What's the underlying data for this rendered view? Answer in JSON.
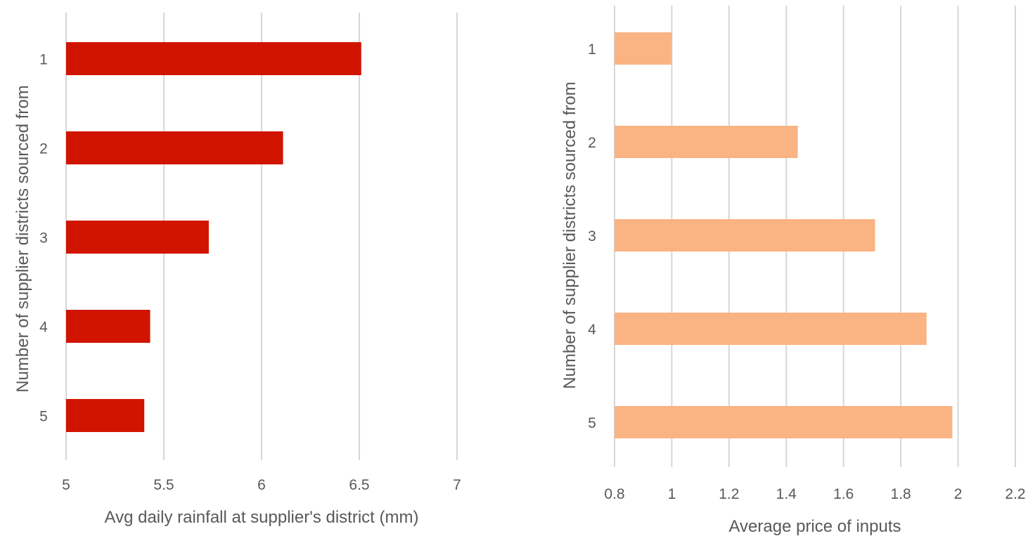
{
  "chart_data": [
    {
      "type": "bar",
      "orientation": "horizontal",
      "categories": [
        "1",
        "2",
        "3",
        "4",
        "5"
      ],
      "values": [
        6.51,
        6.11,
        5.73,
        5.43,
        5.4
      ],
      "xlabel": "Avg daily rainfall at supplier's district (mm)",
      "ylabel": "Number of supplier districts sourced from",
      "xlim": [
        5,
        7
      ],
      "xticks": [
        "5",
        "5.5",
        "6",
        "6.5",
        "7"
      ],
      "grid": true,
      "legend": "none",
      "color": "#d11400"
    },
    {
      "type": "bar",
      "orientation": "horizontal",
      "categories": [
        "1",
        "2",
        "3",
        "4",
        "5"
      ],
      "values": [
        1.0,
        1.44,
        1.71,
        1.89,
        1.98
      ],
      "xlabel": "Average price of inputs",
      "ylabel": "Number of supplier districts sourced from",
      "xlim": [
        0.8,
        2.2
      ],
      "xticks": [
        "0.8",
        "1",
        "1.2",
        "1.4",
        "1.6",
        "1.8",
        "2",
        "2.2"
      ],
      "grid": true,
      "legend": "none",
      "color": "#fab382"
    }
  ]
}
